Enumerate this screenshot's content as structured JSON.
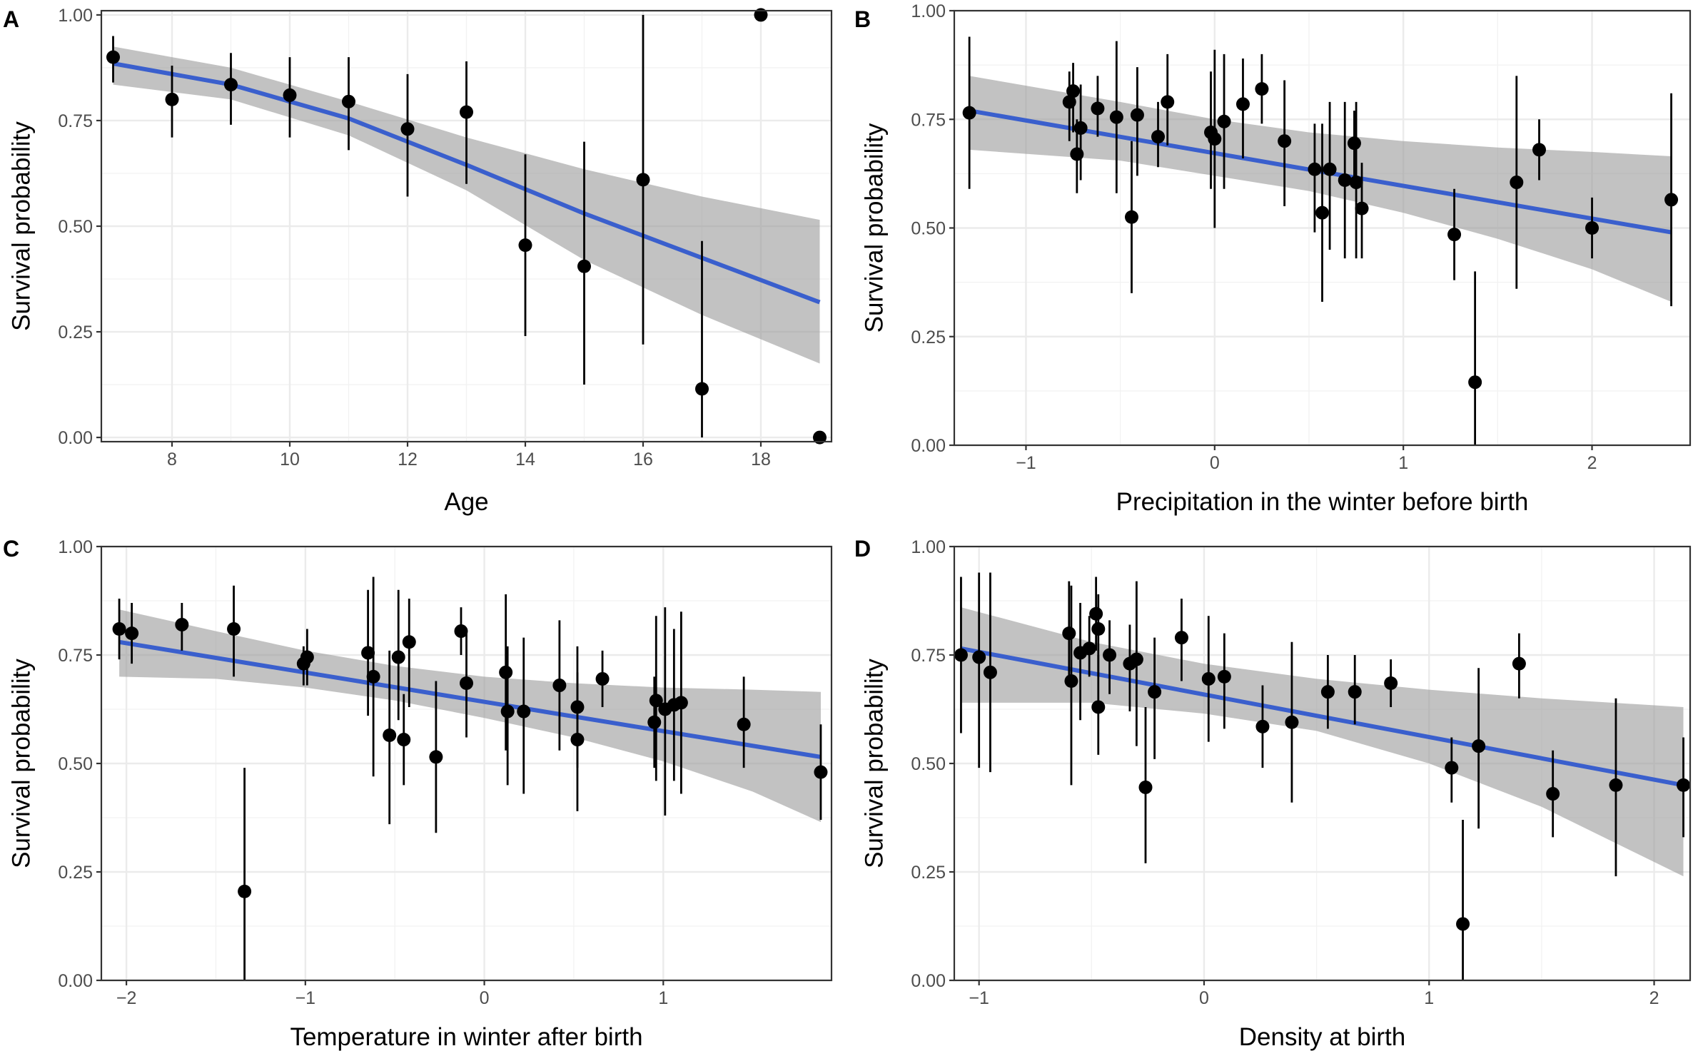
{
  "colors": {
    "fit_line": "#3a5fcd",
    "ribbon": "#999999",
    "points": "#000000"
  },
  "chart_data": [
    {
      "panel": "A",
      "type": "scatter",
      "xlabel": "Age",
      "ylabel": "Survival probability",
      "xlim": [
        6.8,
        19.2
      ],
      "ylim": [
        -0.01,
        1.01
      ],
      "xticks": [
        8,
        10,
        12,
        14,
        16,
        18
      ],
      "xtick_labels": [
        "8",
        "10",
        "12",
        "14",
        "16",
        "18"
      ],
      "yticks": [
        0,
        0.25,
        0.5,
        0.75,
        1
      ],
      "ytick_labels": [
        "0.00",
        "0.25",
        "0.50",
        "0.75",
        "1.00"
      ],
      "points": [
        {
          "x": 7,
          "y": 0.9,
          "lo": 0.84,
          "hi": 0.95
        },
        {
          "x": 8,
          "y": 0.8,
          "lo": 0.71,
          "hi": 0.88
        },
        {
          "x": 9,
          "y": 0.835,
          "lo": 0.74,
          "hi": 0.91
        },
        {
          "x": 10,
          "y": 0.81,
          "lo": 0.71,
          "hi": 0.9
        },
        {
          "x": 11,
          "y": 0.795,
          "lo": 0.68,
          "hi": 0.9
        },
        {
          "x": 12,
          "y": 0.73,
          "lo": 0.57,
          "hi": 0.86
        },
        {
          "x": 13,
          "y": 0.77,
          "lo": 0.6,
          "hi": 0.89
        },
        {
          "x": 14,
          "y": 0.455,
          "lo": 0.24,
          "hi": 0.67
        },
        {
          "x": 15,
          "y": 0.405,
          "lo": 0.125,
          "hi": 0.7
        },
        {
          "x": 16,
          "y": 0.61,
          "lo": 0.22,
          "hi": 1.0
        },
        {
          "x": 17,
          "y": 0.115,
          "lo": 0.0,
          "hi": 0.465
        },
        {
          "x": 18,
          "y": 1.0,
          "lo": 1.0,
          "hi": 1.0
        },
        {
          "x": 19,
          "y": 0.0,
          "lo": 0.0,
          "hi": 0.0
        }
      ],
      "fit": {
        "x": [
          7,
          9,
          11,
          13,
          15,
          17,
          19
        ],
        "y": [
          0.885,
          0.835,
          0.755,
          0.645,
          0.53,
          0.425,
          0.32
        ]
      },
      "ribbon": {
        "x": [
          7,
          9,
          11,
          13,
          15,
          17,
          19
        ],
        "lo": [
          0.835,
          0.8,
          0.715,
          0.585,
          0.42,
          0.29,
          0.175
        ],
        "hi": [
          0.925,
          0.875,
          0.795,
          0.71,
          0.635,
          0.57,
          0.515
        ]
      }
    },
    {
      "panel": "B",
      "type": "scatter",
      "xlabel": "Precipitation in the winter before birth",
      "ylabel": "Survival probability",
      "xlim": [
        -1.38,
        2.52
      ],
      "ylim": [
        0,
        1
      ],
      "xticks": [
        -1,
        0,
        1,
        2
      ],
      "xtick_labels": [
        "−1",
        "0",
        "1",
        "2"
      ],
      "yticks": [
        0,
        0.25,
        0.5,
        0.75,
        1
      ],
      "ytick_labels": [
        "0.00",
        "0.25",
        "0.50",
        "0.75",
        "1.00"
      ],
      "points": [
        {
          "x": -1.3,
          "y": 0.765,
          "lo": 0.59,
          "hi": 0.94
        },
        {
          "x": -0.77,
          "y": 0.79,
          "lo": 0.7,
          "hi": 0.86
        },
        {
          "x": -0.75,
          "y": 0.815,
          "lo": 0.72,
          "hi": 0.88
        },
        {
          "x": -0.73,
          "y": 0.67,
          "lo": 0.58,
          "hi": 0.75
        },
        {
          "x": -0.71,
          "y": 0.73,
          "lo": 0.61,
          "hi": 0.83
        },
        {
          "x": -0.62,
          "y": 0.775,
          "lo": 0.71,
          "hi": 0.85
        },
        {
          "x": -0.52,
          "y": 0.755,
          "lo": 0.58,
          "hi": 0.93
        },
        {
          "x": -0.44,
          "y": 0.525,
          "lo": 0.35,
          "hi": 0.7
        },
        {
          "x": -0.41,
          "y": 0.76,
          "lo": 0.62,
          "hi": 0.87
        },
        {
          "x": -0.3,
          "y": 0.71,
          "lo": 0.64,
          "hi": 0.79
        },
        {
          "x": -0.25,
          "y": 0.79,
          "lo": 0.69,
          "hi": 0.9
        },
        {
          "x": -0.02,
          "y": 0.72,
          "lo": 0.59,
          "hi": 0.86
        },
        {
          "x": 0,
          "y": 0.705,
          "lo": 0.5,
          "hi": 0.91
        },
        {
          "x": 0.05,
          "y": 0.745,
          "lo": 0.59,
          "hi": 0.9
        },
        {
          "x": 0.15,
          "y": 0.785,
          "lo": 0.66,
          "hi": 0.89
        },
        {
          "x": 0.25,
          "y": 0.82,
          "lo": 0.74,
          "hi": 0.9
        },
        {
          "x": 0.37,
          "y": 0.7,
          "lo": 0.55,
          "hi": 0.84
        },
        {
          "x": 0.53,
          "y": 0.635,
          "lo": 0.49,
          "hi": 0.74
        },
        {
          "x": 0.57,
          "y": 0.535,
          "lo": 0.33,
          "hi": 0.74
        },
        {
          "x": 0.61,
          "y": 0.635,
          "lo": 0.45,
          "hi": 0.79
        },
        {
          "x": 0.69,
          "y": 0.61,
          "lo": 0.43,
          "hi": 0.79
        },
        {
          "x": 0.74,
          "y": 0.695,
          "lo": 0.61,
          "hi": 0.77
        },
        {
          "x": 0.75,
          "y": 0.605,
          "lo": 0.43,
          "hi": 0.79
        },
        {
          "x": 0.78,
          "y": 0.545,
          "lo": 0.43,
          "hi": 0.65
        },
        {
          "x": 1.27,
          "y": 0.485,
          "lo": 0.38,
          "hi": 0.59
        },
        {
          "x": 1.38,
          "y": 0.145,
          "lo": 0.0,
          "hi": 0.4
        },
        {
          "x": 1.6,
          "y": 0.605,
          "lo": 0.36,
          "hi": 0.85
        },
        {
          "x": 1.72,
          "y": 0.68,
          "lo": 0.61,
          "hi": 0.75
        },
        {
          "x": 2.0,
          "y": 0.5,
          "lo": 0.43,
          "hi": 0.57
        },
        {
          "x": 2.42,
          "y": 0.565,
          "lo": 0.32,
          "hi": 0.81
        }
      ],
      "fit": {
        "x": [
          -1.3,
          2.42
        ],
        "y": [
          0.77,
          0.49
        ]
      },
      "ribbon": {
        "x": [
          -1.3,
          -0.5,
          0,
          0.5,
          1,
          1.5,
          2.0,
          2.42
        ],
        "lo": [
          0.68,
          0.655,
          0.62,
          0.585,
          0.535,
          0.475,
          0.405,
          0.33
        ],
        "hi": [
          0.85,
          0.79,
          0.75,
          0.72,
          0.7,
          0.685,
          0.675,
          0.665
        ]
      }
    },
    {
      "panel": "C",
      "type": "scatter",
      "xlabel": "Temperature in winter after birth",
      "ylabel": "Survival probability",
      "xlim": [
        -2.14,
        1.94
      ],
      "ylim": [
        0,
        1
      ],
      "xticks": [
        -2,
        -1,
        0,
        1
      ],
      "xtick_labels": [
        "−2",
        "−1",
        "0",
        "1"
      ],
      "yticks": [
        0,
        0.25,
        0.5,
        0.75,
        1
      ],
      "ytick_labels": [
        "0.00",
        "0.25",
        "0.50",
        "0.75",
        "1.00"
      ],
      "points": [
        {
          "x": -2.04,
          "y": 0.81,
          "lo": 0.74,
          "hi": 0.88
        },
        {
          "x": -1.97,
          "y": 0.8,
          "lo": 0.73,
          "hi": 0.87
        },
        {
          "x": -1.69,
          "y": 0.82,
          "lo": 0.76,
          "hi": 0.87
        },
        {
          "x": -1.4,
          "y": 0.81,
          "lo": 0.7,
          "hi": 0.91
        },
        {
          "x": -1.34,
          "y": 0.205,
          "lo": 0.0,
          "hi": 0.49
        },
        {
          "x": -1.01,
          "y": 0.73,
          "lo": 0.68,
          "hi": 0.77
        },
        {
          "x": -0.99,
          "y": 0.745,
          "lo": 0.68,
          "hi": 0.81
        },
        {
          "x": -0.65,
          "y": 0.755,
          "lo": 0.61,
          "hi": 0.9
        },
        {
          "x": -0.62,
          "y": 0.7,
          "lo": 0.47,
          "hi": 0.93
        },
        {
          "x": -0.53,
          "y": 0.565,
          "lo": 0.36,
          "hi": 0.76
        },
        {
          "x": -0.48,
          "y": 0.745,
          "lo": 0.6,
          "hi": 0.9
        },
        {
          "x": -0.45,
          "y": 0.555,
          "lo": 0.45,
          "hi": 0.66
        },
        {
          "x": -0.42,
          "y": 0.78,
          "lo": 0.63,
          "hi": 0.88
        },
        {
          "x": -0.27,
          "y": 0.515,
          "lo": 0.34,
          "hi": 0.69
        },
        {
          "x": -0.13,
          "y": 0.805,
          "lo": 0.75,
          "hi": 0.86
        },
        {
          "x": -0.1,
          "y": 0.685,
          "lo": 0.56,
          "hi": 0.8
        },
        {
          "x": 0.12,
          "y": 0.71,
          "lo": 0.53,
          "hi": 0.89
        },
        {
          "x": 0.13,
          "y": 0.62,
          "lo": 0.45,
          "hi": 0.77
        },
        {
          "x": 0.22,
          "y": 0.62,
          "lo": 0.43,
          "hi": 0.79
        },
        {
          "x": 0.42,
          "y": 0.68,
          "lo": 0.53,
          "hi": 0.83
        },
        {
          "x": 0.52,
          "y": 0.63,
          "lo": 0.49,
          "hi": 0.77
        },
        {
          "x": 0.52,
          "y": 0.555,
          "lo": 0.39,
          "hi": 0.71
        },
        {
          "x": 0.66,
          "y": 0.695,
          "lo": 0.63,
          "hi": 0.76
        },
        {
          "x": 0.95,
          "y": 0.595,
          "lo": 0.49,
          "hi": 0.7
        },
        {
          "x": 0.96,
          "y": 0.645,
          "lo": 0.46,
          "hi": 0.84
        },
        {
          "x": 1.01,
          "y": 0.625,
          "lo": 0.38,
          "hi": 0.86
        },
        {
          "x": 1.06,
          "y": 0.635,
          "lo": 0.46,
          "hi": 0.81
        },
        {
          "x": 1.1,
          "y": 0.64,
          "lo": 0.43,
          "hi": 0.85
        },
        {
          "x": 1.45,
          "y": 0.59,
          "lo": 0.49,
          "hi": 0.7
        },
        {
          "x": 1.88,
          "y": 0.48,
          "lo": 0.37,
          "hi": 0.59
        }
      ],
      "fit": {
        "x": [
          -2.04,
          1.88
        ],
        "y": [
          0.78,
          0.515
        ]
      },
      "ribbon": {
        "x": [
          -2.04,
          -1.5,
          -1.0,
          -0.5,
          0,
          0.5,
          1.0,
          1.5,
          1.88
        ],
        "lo": [
          0.7,
          0.695,
          0.675,
          0.645,
          0.605,
          0.56,
          0.505,
          0.435,
          0.365
        ],
        "hi": [
          0.855,
          0.805,
          0.76,
          0.725,
          0.7,
          0.685,
          0.675,
          0.67,
          0.665
        ]
      }
    },
    {
      "panel": "D",
      "type": "scatter",
      "xlabel": "Density at birth",
      "ylabel": "Survival probability",
      "xlim": [
        -1.11,
        2.16
      ],
      "ylim": [
        0,
        1
      ],
      "xticks": [
        -1,
        0,
        1,
        2
      ],
      "xtick_labels": [
        "−1",
        "0",
        "1",
        "2"
      ],
      "yticks": [
        0,
        0.25,
        0.5,
        0.75,
        1
      ],
      "ytick_labels": [
        "0.00",
        "0.25",
        "0.50",
        "0.75",
        "1.00"
      ],
      "points": [
        {
          "x": -1.08,
          "y": 0.75,
          "lo": 0.57,
          "hi": 0.93
        },
        {
          "x": -1.0,
          "y": 0.745,
          "lo": 0.49,
          "hi": 0.94
        },
        {
          "x": -0.95,
          "y": 0.71,
          "lo": 0.48,
          "hi": 0.94
        },
        {
          "x": -0.6,
          "y": 0.8,
          "lo": 0.69,
          "hi": 0.92
        },
        {
          "x": -0.59,
          "y": 0.69,
          "lo": 0.45,
          "hi": 0.91
        },
        {
          "x": -0.55,
          "y": 0.755,
          "lo": 0.6,
          "hi": 0.87
        },
        {
          "x": -0.51,
          "y": 0.765,
          "lo": 0.7,
          "hi": 0.84
        },
        {
          "x": -0.48,
          "y": 0.845,
          "lo": 0.76,
          "hi": 0.93
        },
        {
          "x": -0.47,
          "y": 0.81,
          "lo": 0.7,
          "hi": 0.89
        },
        {
          "x": -0.47,
          "y": 0.63,
          "lo": 0.52,
          "hi": 0.75
        },
        {
          "x": -0.42,
          "y": 0.75,
          "lo": 0.66,
          "hi": 0.83
        },
        {
          "x": -0.33,
          "y": 0.73,
          "lo": 0.62,
          "hi": 0.82
        },
        {
          "x": -0.3,
          "y": 0.74,
          "lo": 0.54,
          "hi": 0.92
        },
        {
          "x": -0.26,
          "y": 0.445,
          "lo": 0.27,
          "hi": 0.63
        },
        {
          "x": -0.22,
          "y": 0.665,
          "lo": 0.51,
          "hi": 0.79
        },
        {
          "x": -0.1,
          "y": 0.79,
          "lo": 0.69,
          "hi": 0.88
        },
        {
          "x": 0.02,
          "y": 0.695,
          "lo": 0.55,
          "hi": 0.84
        },
        {
          "x": 0.09,
          "y": 0.7,
          "lo": 0.58,
          "hi": 0.8
        },
        {
          "x": 0.26,
          "y": 0.585,
          "lo": 0.49,
          "hi": 0.68
        },
        {
          "x": 0.39,
          "y": 0.595,
          "lo": 0.41,
          "hi": 0.78
        },
        {
          "x": 0.55,
          "y": 0.665,
          "lo": 0.58,
          "hi": 0.75
        },
        {
          "x": 0.67,
          "y": 0.665,
          "lo": 0.59,
          "hi": 0.75
        },
        {
          "x": 0.83,
          "y": 0.685,
          "lo": 0.63,
          "hi": 0.74
        },
        {
          "x": 1.1,
          "y": 0.49,
          "lo": 0.41,
          "hi": 0.56
        },
        {
          "x": 1.15,
          "y": 0.13,
          "lo": 0.0,
          "hi": 0.37
        },
        {
          "x": 1.22,
          "y": 0.54,
          "lo": 0.35,
          "hi": 0.72
        },
        {
          "x": 1.4,
          "y": 0.73,
          "lo": 0.65,
          "hi": 0.8
        },
        {
          "x": 1.55,
          "y": 0.43,
          "lo": 0.33,
          "hi": 0.53
        },
        {
          "x": 1.83,
          "y": 0.45,
          "lo": 0.24,
          "hi": 0.65
        },
        {
          "x": 2.13,
          "y": 0.45,
          "lo": 0.33,
          "hi": 0.56
        }
      ],
      "fit": {
        "x": [
          -1.08,
          2.13
        ],
        "y": [
          0.765,
          0.45
        ]
      },
      "ribbon": {
        "x": [
          -1.08,
          -0.5,
          0,
          0.5,
          1.0,
          1.5,
          2.13
        ],
        "lo": [
          0.64,
          0.64,
          0.615,
          0.575,
          0.5,
          0.4,
          0.24
        ],
        "hi": [
          0.86,
          0.78,
          0.73,
          0.695,
          0.67,
          0.65,
          0.63
        ]
      }
    }
  ]
}
